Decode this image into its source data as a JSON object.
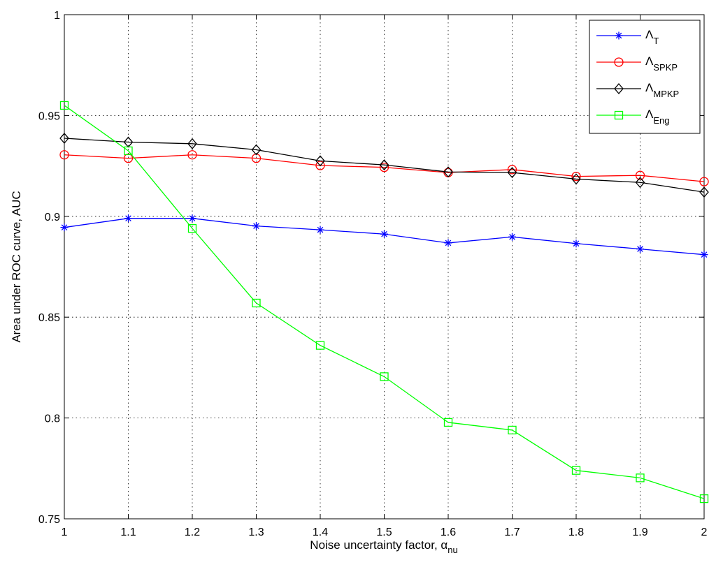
{
  "chart_data": {
    "type": "line",
    "title": "",
    "xlabel": "Noise uncertainty factor, α",
    "xlabel_subscript": "nu",
    "ylabel": "Area under ROC curve, AUC",
    "xlim": [
      1,
      2
    ],
    "ylim": [
      0.75,
      1
    ],
    "x": [
      1,
      1.1,
      1.2,
      1.3,
      1.4,
      1.5,
      1.6,
      1.7,
      1.8,
      1.9,
      2
    ],
    "xticks": [
      "1",
      "1.1",
      "1.2",
      "1.3",
      "1.4",
      "1.5",
      "1.6",
      "1.7",
      "1.8",
      "1.9",
      "2"
    ],
    "yticks": [
      "0.75",
      "0.8",
      "0.85",
      "0.9",
      "0.95",
      "1"
    ],
    "grid": true,
    "legend_position": "top-right",
    "series": [
      {
        "name": "Λ",
        "subscript": "T",
        "color": "#0000ff",
        "marker": "asterisk",
        "values": [
          0.8945,
          0.899,
          0.899,
          0.8952,
          0.8933,
          0.8912,
          0.8868,
          0.8898,
          0.8865,
          0.8838,
          0.881
        ]
      },
      {
        "name": "Λ",
        "subscript": "SPKP",
        "color": "#ff0000",
        "marker": "circle",
        "values": [
          0.9305,
          0.9288,
          0.9305,
          0.9288,
          0.9252,
          0.9243,
          0.9217,
          0.9232,
          0.9198,
          0.9203,
          0.9172
        ]
      },
      {
        "name": "Λ",
        "subscript": "MPKP",
        "color": "#000000",
        "marker": "diamond",
        "values": [
          0.9387,
          0.9368,
          0.936,
          0.933,
          0.9275,
          0.9255,
          0.922,
          0.9217,
          0.9185,
          0.9168,
          0.912
        ]
      },
      {
        "name": "Λ",
        "subscript": "Eng",
        "color": "#00ff00",
        "marker": "square",
        "values": [
          0.955,
          0.9325,
          0.894,
          0.857,
          0.836,
          0.8205,
          0.7978,
          0.794,
          0.774,
          0.7703,
          0.76
        ]
      }
    ]
  }
}
